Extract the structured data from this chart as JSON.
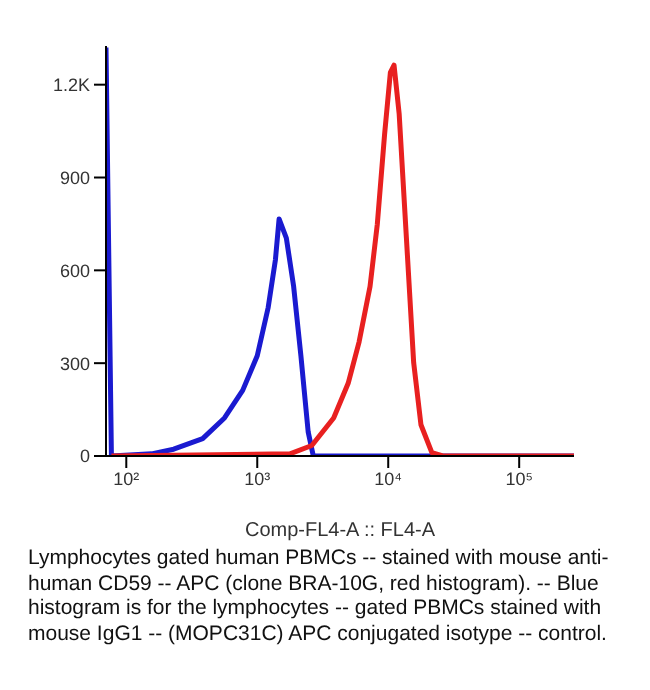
{
  "chart_data": {
    "type": "line",
    "xlabel": "Comp-FL4-A :: FL4-A",
    "log": "x",
    "xlim": [
      70,
      262144
    ],
    "xticks": [
      {
        "value": 100,
        "label": "10²"
      },
      {
        "value": 1000,
        "label": "10³"
      },
      {
        "value": 10000,
        "label": "10⁴"
      },
      {
        "value": 100000,
        "label": "10⁵"
      }
    ],
    "ylim": [
      0,
      1325
    ],
    "yticks": [
      0,
      300,
      600,
      900,
      {
        "value": 1200,
        "label": "1.2K"
      }
    ],
    "marker": "none",
    "line_style": "solid",
    "series": [
      {
        "color": "#1a1ad0",
        "x": [
          70,
          77,
          156,
          230,
          383,
          562,
          774,
          1000,
          1212,
          1377,
          1468,
          1668,
          1896,
          2154,
          2448,
          2679,
          262144
        ],
        "values": [
          1320,
          0,
          7,
          22,
          56,
          123,
          212,
          324,
          480,
          635,
          766,
          704,
          548,
          324,
          78,
          0,
          0
        ]
      },
      {
        "color": "#e82020",
        "x": [
          77,
          1778,
          2610,
          3831,
          4946,
          5995,
          7263,
          8254,
          9380,
          10390,
          11080,
          12120,
          13770,
          15640,
          17780,
          21540,
          26100,
          262144
        ],
        "values": [
          0,
          7,
          34,
          123,
          235,
          369,
          548,
          749,
          1039,
          1240,
          1263,
          1106,
          704,
          302,
          101,
          11,
          0,
          0
        ]
      }
    ],
    "annotations": [
      "Lymphocytes gated human PBMCs -- stained with mouse anti-human CD59 -- APC (clone BRA-10G, red histogram). -- Blue histogram is for the lymphocytes -- gated PBMCs stained with mouse IgG1 -- (MOPC31C) APC conjugated isotype -- control."
    ]
  }
}
